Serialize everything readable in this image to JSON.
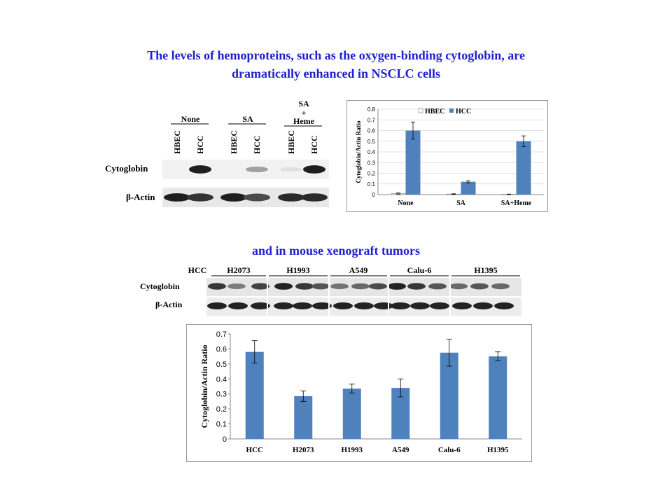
{
  "headline": {
    "line1": "The levels of hemoproteins, such as the oxygen-binding cytoglobin, are",
    "line2": "dramatically enhanced in NSCLC cells",
    "line3": "and in mouse xenograft tumors"
  },
  "blot1": {
    "groups": [
      "None",
      "SA",
      "SA",
      "+",
      "Heme"
    ],
    "lanes": [
      "HBEC",
      "HCC",
      "HBEC",
      "HCC",
      "HBEC",
      "HCC"
    ],
    "rows": [
      "Cytoglobin",
      "β-Actin"
    ],
    "cytoglobin_intensity": [
      0.0,
      0.95,
      0.0,
      0.35,
      0.05,
      0.95
    ],
    "actin_intensity": [
      0.95,
      0.85,
      0.95,
      0.75,
      0.9,
      0.9
    ]
  },
  "blot2": {
    "groups": [
      "HCC",
      "H2073",
      "H1993",
      "A549",
      "Calu-6",
      "H1395"
    ],
    "rows": [
      "Cytoglobin",
      "β-Actin"
    ]
  },
  "colors": {
    "headline": "#1f1fd0",
    "bar": "#4f81bd",
    "hbec_bar": "#ffffff"
  },
  "chart_data": [
    {
      "type": "bar",
      "title": "",
      "xlabel": "",
      "ylabel": "Cytoglobin/Actin Ratio",
      "categories": [
        "None",
        "SA",
        "SA+Heme"
      ],
      "series": [
        {
          "name": "HBEC",
          "values": [
            0.01,
            0.005,
            0.003
          ],
          "errors": [
            0.005,
            0.003,
            0.002
          ]
        },
        {
          "name": "HCC",
          "values": [
            0.6,
            0.12,
            0.5
          ],
          "errors": [
            0.08,
            0.01,
            0.05
          ]
        }
      ],
      "ylim": [
        0,
        0.8
      ],
      "yticks": [
        "0",
        "0.1",
        "0.2",
        "0.3",
        "0.4",
        "0.5",
        "0.6",
        "0.7",
        "0.8"
      ],
      "grid": true,
      "legend_position": "top-left"
    },
    {
      "type": "bar",
      "title": "",
      "xlabel": "",
      "ylabel": "Cytoglobin/Actin Ratio",
      "categories": [
        "HCC",
        "H2073",
        "H1993",
        "A549",
        "Calu-6",
        "H1395"
      ],
      "values": [
        0.58,
        0.285,
        0.335,
        0.34,
        0.575,
        0.55
      ],
      "errors": [
        0.075,
        0.035,
        0.03,
        0.06,
        0.09,
        0.03
      ],
      "ylim": [
        0,
        0.7
      ],
      "yticks": [
        "0",
        "0.1",
        "0.2",
        "0.3",
        "0.4",
        "0.5",
        "0.6",
        "0.7"
      ],
      "grid": false,
      "legend_position": "none"
    }
  ]
}
